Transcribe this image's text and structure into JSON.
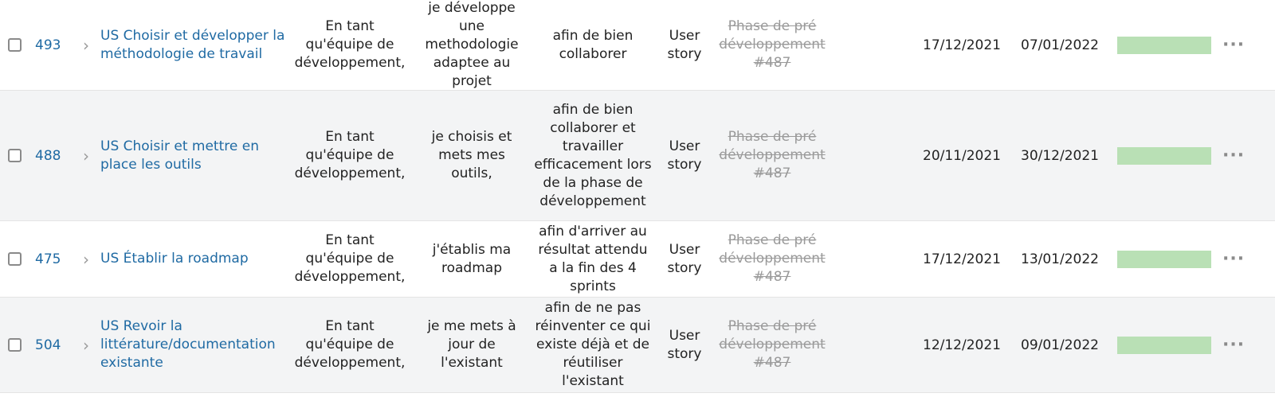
{
  "rows": [
    {
      "id": "493",
      "subject": "US Choisir et développer la méthodologie de travail",
      "role": "En tant qu'équipe de développement,",
      "action": "je développe une methodologie adaptee au projet",
      "benefit": "afin de bien collaborer",
      "type": "User story",
      "parent": "Phase de pré développement #487",
      "start_date": "17/12/2021",
      "due_date": "07/01/2022",
      "progress": 1.0
    },
    {
      "id": "488",
      "subject": "US Choisir et mettre en place les outils",
      "role": "En tant qu'équipe de développement,",
      "action": "je choisis et mets mes outils,",
      "benefit": "afin de bien collaborer et travailler efficacement lors de la phase de développement",
      "type": "User story",
      "parent": "Phase de pré développement #487",
      "start_date": "20/11/2021",
      "due_date": "30/12/2021",
      "progress": 1.0
    },
    {
      "id": "475",
      "subject": "US Établir la roadmap",
      "role": "En tant qu'équipe de développement,",
      "action": "j'établis ma roadmap",
      "benefit": "afin d'arriver au résultat attendu a la fin des 4 sprints",
      "type": "User story",
      "parent": "Phase de pré développement #487",
      "start_date": "17/12/2021",
      "due_date": "13/01/2022",
      "progress": 1.0
    },
    {
      "id": "504",
      "subject": "US Revoir la littérature/documentation existante",
      "role": "En tant qu'équipe de développement,",
      "action": "je me mets à jour de l'existant",
      "benefit": "afin de ne pas réinventer ce qui existe déjà et de réutiliser l'existant",
      "type": "User story",
      "parent": "Phase de pré développement #487",
      "start_date": "12/12/2021",
      "due_date": "09/01/2022",
      "progress": 1.0
    }
  ],
  "icons": {
    "checkbox": "checkbox-icon",
    "expand": "chevron-right-icon",
    "more": "more-horizontal-icon"
  },
  "colors": {
    "link": "#1f6aa3",
    "progress_fill": "#b9e0b5",
    "alt_row": "#f3f4f5",
    "muted": "#9a9a9a"
  }
}
